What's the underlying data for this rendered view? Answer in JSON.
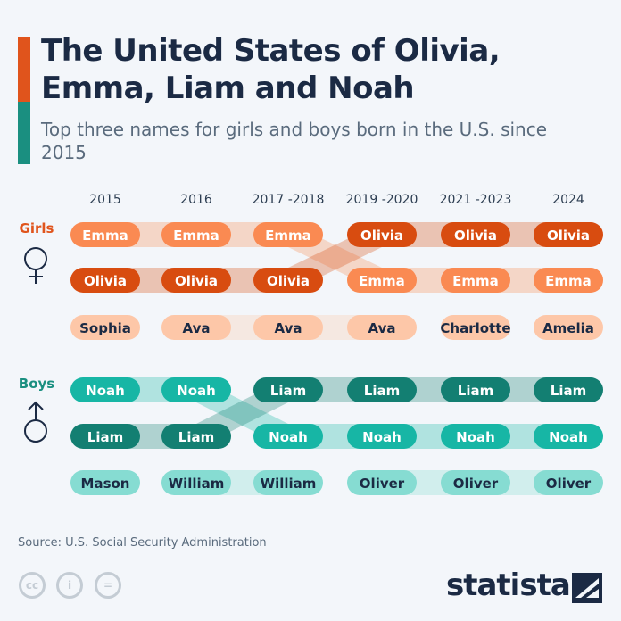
{
  "title": "The United States of Olivia, Emma, Liam and Noah",
  "subtitle": "Top three names for girls and boys born in the U.S. since 2015",
  "source": "Source: U.S. Social Security Administration",
  "brand": "statista",
  "colors": {
    "accent_girls": "#e0541c",
    "accent_boys": "#1a8f80"
  },
  "chart_data": {
    "type": "table",
    "categories": [
      "2015",
      "2016",
      "2017 -2018",
      "2019 -2020",
      "2021 -2023",
      "2024"
    ],
    "groups": [
      {
        "name": "Girls",
        "icon": "female-symbol-icon",
        "label_color": "#e0541c",
        "ranks": [
          [
            "Emma",
            "Emma",
            "Emma",
            "Olivia",
            "Olivia",
            "Olivia"
          ],
          [
            "Olivia",
            "Olivia",
            "Olivia",
            "Emma",
            "Emma",
            "Emma"
          ],
          [
            "Sophia",
            "Ava",
            "Ava",
            "Ava",
            "Charlotte",
            "Amelia"
          ]
        ],
        "name_colors": {
          "Emma": "#fa8a52",
          "Olivia": "#d84c10",
          "other": "#fdc7a8"
        }
      },
      {
        "name": "Boys",
        "icon": "male-symbol-icon",
        "label_color": "#1a8f80",
        "ranks": [
          [
            "Noah",
            "Noah",
            "Liam",
            "Liam",
            "Liam",
            "Liam"
          ],
          [
            "Liam",
            "Liam",
            "Noah",
            "Noah",
            "Noah",
            "Noah"
          ],
          [
            "Mason",
            "William",
            "William",
            "Oliver",
            "Oliver",
            "Oliver"
          ]
        ],
        "name_colors": {
          "Noah": "#17b6a5",
          "Liam": "#137f72",
          "other": "#86dcd2"
        }
      }
    ]
  }
}
